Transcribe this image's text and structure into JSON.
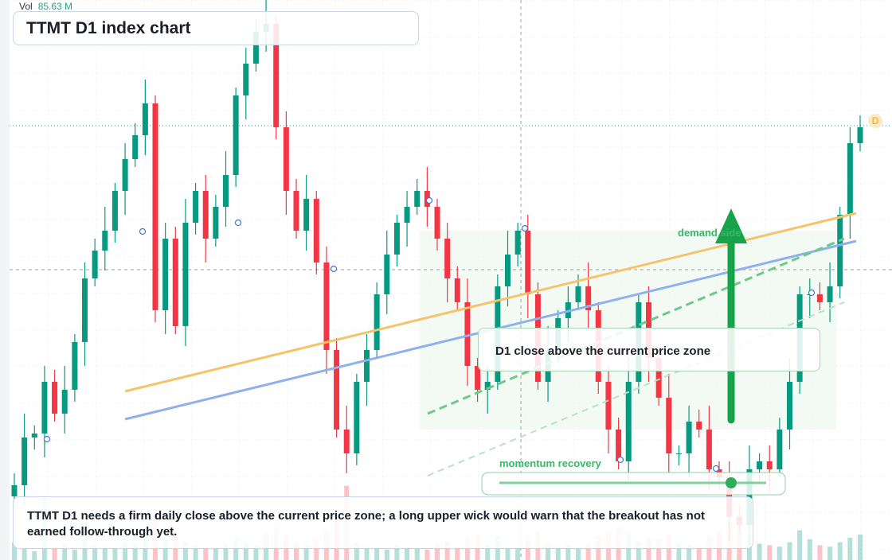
{
  "volume_name": "Vol",
  "volume_label": "85.63 M",
  "badge": "D",
  "annotations": {
    "demand": "demand side",
    "callout": "D1 close above the current price zone",
    "momentum": "momentum recovery",
    "note": "TTMT D1 needs a firm daily close above the current price zone; a long upper wick would warn that the breakout has not earned follow-through yet."
  },
  "chart_data": {
    "type": "candlestick",
    "title": "TTMT D1 index chart",
    "up_color": "#089981",
    "down_color": "#f23645",
    "ylim": [
      0,
      70.4
    ],
    "vlim": [
      0,
      300
    ],
    "ohlc": {
      "open": [
        8.0,
        9.4,
        15.4,
        15.9,
        22.4,
        18.4,
        21.4,
        27.4,
        35.4,
        38.9,
        41.4,
        46.4,
        50.4,
        53.4,
        57.4,
        31.4,
        40.4,
        29.4,
        42.4,
        46.4,
        40.4,
        44.4,
        48.4,
        58.4,
        62.4,
        66.4,
        67.4,
        54.4,
        46.4,
        41.4,
        45.4,
        37.4,
        26.4,
        16.4,
        13.4,
        22.4,
        26.4,
        33.4,
        38.4,
        42.4,
        44.4,
        46.4,
        44.4,
        40.4,
        35.4,
        32.4,
        24.4,
        21.4,
        22.4,
        34.4,
        38.4,
        41.4,
        33.4,
        22.4,
        26.4,
        30.4,
        32.4,
        34.4,
        31.4,
        22.4,
        16.4,
        12.4,
        22.4,
        32.4,
        25.4,
        20.4,
        13.4,
        13.4,
        17.4,
        16.4,
        11.4,
        10.4,
        5.4,
        4.4,
        11.4,
        12.4,
        11.4,
        16.4,
        22.4,
        33.4,
        33.4,
        32.4,
        34.4,
        43.4,
        52.4
      ],
      "high": [
        10.9,
        18.4,
        16.9,
        24.4,
        23.9,
        24.4,
        28.4,
        37.4,
        40.4,
        44.4,
        47.4,
        52.4,
        54.9,
        60.4,
        58.4,
        42.4,
        41.9,
        45.4,
        47.4,
        48.4,
        45.9,
        51.4,
        59.4,
        64.4,
        67.9,
        70.4,
        68.4,
        56.4,
        47.9,
        48.4,
        46.4,
        39.4,
        27.9,
        19.4,
        23.4,
        28.4,
        34.9,
        41.4,
        43.4,
        46.4,
        47.9,
        49.4,
        45.4,
        42.4,
        36.9,
        35.4,
        25.4,
        24.4,
        35.9,
        41.4,
        42.4,
        43.4,
        34.9,
        29.4,
        31.4,
        34.4,
        35.9,
        37.4,
        32.4,
        24.4,
        17.9,
        25.4,
        33.4,
        34.4,
        26.9,
        23.4,
        14.4,
        19.4,
        18.9,
        19.4,
        12.4,
        12.4,
        6.9,
        14.4,
        13.4,
        14.4,
        17.9,
        25.4,
        34.4,
        35.4,
        34.9,
        37.4,
        44.4,
        54.4,
        55.9
      ],
      "low": [
        7.0,
        6.9,
        13.9,
        12.9,
        17.4,
        15.9,
        19.9,
        24.4,
        34.4,
        36.4,
        39.9,
        43.4,
        49.4,
        50.9,
        29.9,
        28.4,
        28.4,
        26.9,
        40.9,
        37.4,
        39.4,
        41.9,
        46.9,
        55.4,
        61.4,
        63.9,
        52.9,
        43.4,
        40.4,
        38.9,
        35.9,
        23.4,
        15.4,
        10.9,
        11.9,
        19.4,
        25.4,
        30.9,
        36.9,
        39.4,
        43.4,
        41.9,
        38.9,
        32.4,
        31.4,
        21.9,
        19.9,
        18.4,
        21.4,
        31.9,
        36.9,
        30.4,
        21.4,
        19.9,
        24.9,
        27.4,
        31.4,
        28.9,
        20.9,
        13.4,
        11.4,
        9.9,
        20.9,
        22.4,
        19.4,
        10.9,
        11.9,
        10.4,
        15.4,
        8.9,
        8.9,
        2.4,
        3.4,
        1.9,
        9.9,
        8.4,
        10.4,
        13.9,
        20.9,
        30.4,
        31.4,
        29.9,
        32.9,
        40.4,
        51.4
      ],
      "close": [
        9.4,
        15.4,
        15.9,
        22.4,
        18.4,
        21.4,
        27.4,
        35.4,
        38.9,
        41.4,
        46.4,
        50.4,
        53.4,
        57.4,
        31.4,
        40.4,
        29.4,
        42.4,
        46.4,
        40.4,
        44.4,
        48.4,
        58.4,
        62.4,
        66.4,
        67.4,
        54.4,
        46.4,
        41.4,
        45.4,
        37.4,
        26.4,
        16.4,
        13.4,
        22.4,
        26.4,
        33.4,
        38.4,
        42.4,
        44.4,
        46.4,
        44.4,
        40.4,
        35.4,
        32.4,
        24.4,
        21.4,
        22.4,
        34.4,
        38.4,
        41.4,
        33.4,
        22.4,
        26.4,
        30.4,
        32.4,
        34.4,
        31.4,
        22.4,
        16.4,
        12.4,
        22.4,
        32.4,
        25.4,
        20.4,
        13.4,
        13.4,
        17.4,
        16.4,
        11.4,
        10.4,
        5.4,
        4.4,
        11.4,
        12.4,
        11.4,
        16.4,
        22.4,
        33.4,
        33.4,
        32.4,
        34.4,
        43.4,
        52.4,
        54.4
      ]
    },
    "volume": [
      60,
      45,
      30,
      210,
      40,
      55,
      35,
      70,
      50,
      45,
      40,
      60,
      55,
      80,
      150,
      70,
      90,
      60,
      50,
      40,
      45,
      55,
      70,
      60,
      50,
      90,
      110,
      80,
      60,
      50,
      70,
      95,
      140,
      250,
      60,
      45,
      40,
      35,
      50,
      45,
      40,
      35,
      55,
      60,
      45,
      75,
      90,
      50,
      80,
      45,
      40,
      70,
      95,
      55,
      45,
      50,
      40,
      55,
      80,
      95,
      110,
      90,
      60,
      75,
      70,
      85,
      60,
      50,
      45,
      80,
      95,
      130,
      150,
      90,
      55,
      50,
      45,
      60,
      100,
      70,
      50,
      45,
      60,
      75,
      85.63
    ]
  }
}
